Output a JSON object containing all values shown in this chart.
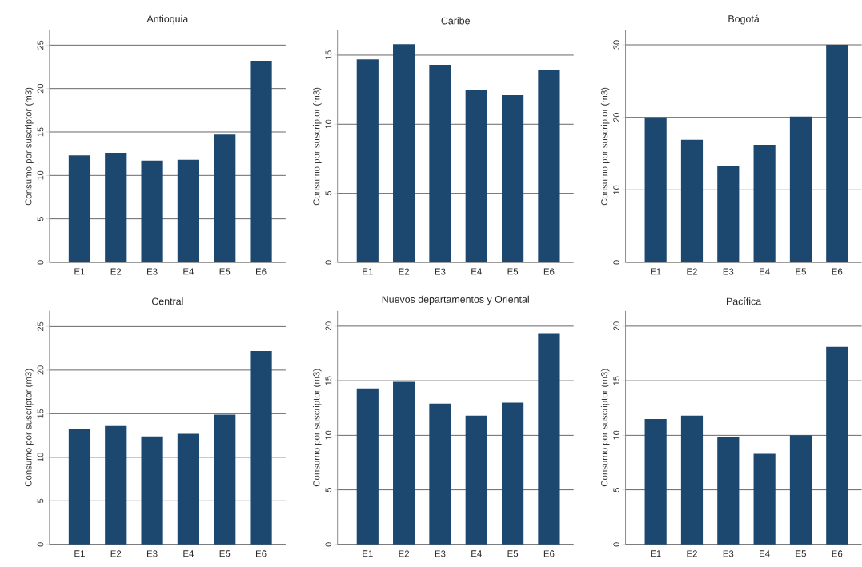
{
  "chart_data": [
    {
      "type": "bar",
      "title": "Antioquia",
      "ylabel": "Consumo por suscriptor (m3)",
      "categories": [
        "E1",
        "E2",
        "E3",
        "E4",
        "E5",
        "E6"
      ],
      "values": [
        12.3,
        12.6,
        11.7,
        11.8,
        14.7,
        23.2
      ],
      "color": "#1c4870",
      "ylim": [
        0,
        26.7
      ],
      "yticks": [
        0,
        5,
        10,
        15,
        20,
        25
      ],
      "grid": "y"
    },
    {
      "type": "bar",
      "title": "Caribe",
      "ylabel": "Consumo por suscriptor (m3)",
      "categories": [
        "E1",
        "E2",
        "E3",
        "E4",
        "E5",
        "E6"
      ],
      "values": [
        14.7,
        15.8,
        14.3,
        12.5,
        12.1,
        13.9
      ],
      "color": "#1c4870",
      "ylim": [
        0,
        16.8
      ],
      "yticks": [
        0,
        5,
        10,
        15
      ],
      "grid": "y"
    },
    {
      "type": "bar",
      "title": "Bogotá",
      "ylabel": "Consumo por suscriptor (m3)",
      "categories": [
        "E1",
        "E2",
        "E3",
        "E4",
        "E5",
        "E6"
      ],
      "values": [
        20.0,
        16.9,
        13.3,
        16.2,
        20.1,
        30.0
      ],
      "color": "#1c4870",
      "ylim": [
        0,
        32
      ],
      "yticks": [
        0,
        10,
        20,
        30
      ],
      "grid": "y"
    },
    {
      "type": "bar",
      "title": "Central",
      "ylabel": "Consumo por suscriptor (m3)",
      "categories": [
        "E1",
        "E2",
        "E3",
        "E4",
        "E5",
        "E6"
      ],
      "values": [
        13.3,
        13.6,
        12.4,
        12.7,
        14.9,
        22.2
      ],
      "color": "#1c4870",
      "ylim": [
        0,
        26.8
      ],
      "yticks": [
        0,
        5,
        10,
        15,
        20,
        25
      ],
      "grid": "y"
    },
    {
      "type": "bar",
      "title": "Nuevos departamentos y Oriental",
      "ylabel": "Consumo por suscriptor (m3)",
      "categories": [
        "E1",
        "E2",
        "E3",
        "E4",
        "E5",
        "E6"
      ],
      "values": [
        14.3,
        14.9,
        12.9,
        11.8,
        13.0,
        19.3
      ],
      "color": "#1c4870",
      "ylim": [
        0,
        21.4
      ],
      "yticks": [
        0,
        5,
        10,
        15,
        20
      ],
      "grid": "y"
    },
    {
      "type": "bar",
      "title": "Pacífica",
      "ylabel": "Consumo por suscriptor (m3)",
      "categories": [
        "E1",
        "E2",
        "E3",
        "E4",
        "E5",
        "E6"
      ],
      "values": [
        11.5,
        11.8,
        9.8,
        8.3,
        10.0,
        18.1
      ],
      "color": "#1c4870",
      "ylim": [
        0,
        21.4
      ],
      "yticks": [
        0,
        5,
        10,
        15,
        20
      ],
      "grid": "y"
    }
  ]
}
